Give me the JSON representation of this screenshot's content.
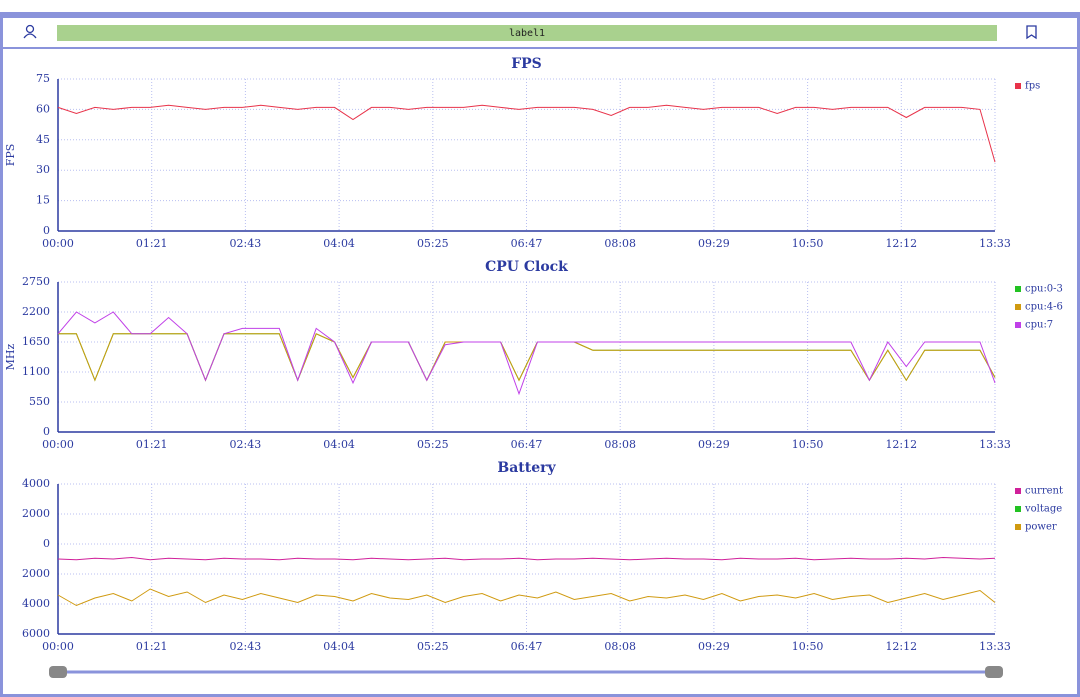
{
  "toolbar": {
    "label": "label1"
  },
  "chart_data": [
    {
      "type": "line",
      "title": "FPS",
      "y_label": "FPS",
      "x": [
        0,
        16,
        32,
        48,
        64,
        80,
        96,
        112,
        128,
        144,
        160,
        176,
        192,
        208,
        224,
        240,
        256,
        272,
        288,
        304,
        320,
        336,
        352,
        368,
        384,
        400,
        416,
        432,
        448,
        464,
        480,
        496,
        512,
        528,
        544,
        560,
        576,
        592,
        608,
        624,
        640,
        656,
        672,
        688,
        704,
        720,
        736,
        752,
        768,
        784,
        800,
        813
      ],
      "xlim": [
        0,
        813
      ],
      "xticks": [
        {
          "value": 0,
          "label": "00:00"
        },
        {
          "value": 81.3,
          "label": "01:21"
        },
        {
          "value": 162.6,
          "label": "02:43"
        },
        {
          "value": 243.9,
          "label": "04:04"
        },
        {
          "value": 325.2,
          "label": "05:25"
        },
        {
          "value": 406.5,
          "label": "06:47"
        },
        {
          "value": 487.8,
          "label": "08:08"
        },
        {
          "value": 569.1,
          "label": "09:29"
        },
        {
          "value": 650.4,
          "label": "10:50"
        },
        {
          "value": 731.7,
          "label": "12:12"
        },
        {
          "value": 813,
          "label": "13:33"
        }
      ],
      "ylim": [
        0,
        75
      ],
      "yticks": [
        0,
        15,
        30,
        45,
        60,
        75
      ],
      "grid": true,
      "legend": "right",
      "series": [
        {
          "name": "fps",
          "color": "#e8334a",
          "values": [
            61,
            58,
            61,
            60,
            61,
            61,
            62,
            61,
            60,
            61,
            61,
            62,
            61,
            60,
            61,
            61,
            55,
            61,
            61,
            60,
            61,
            61,
            61,
            62,
            61,
            60,
            61,
            61,
            61,
            60,
            57,
            61,
            61,
            62,
            61,
            60,
            61,
            61,
            61,
            58,
            61,
            61,
            60,
            61,
            61,
            61,
            56,
            61,
            61,
            61,
            60,
            34
          ]
        }
      ]
    },
    {
      "type": "line",
      "title": "CPU Clock",
      "y_label": "MHz",
      "x": [
        0,
        16,
        32,
        48,
        64,
        80,
        96,
        112,
        128,
        144,
        160,
        176,
        192,
        208,
        224,
        240,
        256,
        272,
        288,
        304,
        320,
        336,
        352,
        368,
        384,
        400,
        416,
        432,
        448,
        464,
        480,
        496,
        512,
        528,
        544,
        560,
        576,
        592,
        608,
        624,
        640,
        656,
        672,
        688,
        704,
        720,
        736,
        752,
        768,
        784,
        800,
        813
      ],
      "xlim": [
        0,
        813
      ],
      "xticks": [
        {
          "value": 0,
          "label": "00:00"
        },
        {
          "value": 81.3,
          "label": "01:21"
        },
        {
          "value": 162.6,
          "label": "02:43"
        },
        {
          "value": 243.9,
          "label": "04:04"
        },
        {
          "value": 325.2,
          "label": "05:25"
        },
        {
          "value": 406.5,
          "label": "06:47"
        },
        {
          "value": 487.8,
          "label": "08:08"
        },
        {
          "value": 569.1,
          "label": "09:29"
        },
        {
          "value": 650.4,
          "label": "10:50"
        },
        {
          "value": 731.7,
          "label": "12:12"
        },
        {
          "value": 813,
          "label": "13:33"
        }
      ],
      "ylim": [
        0,
        2750
      ],
      "yticks": [
        0,
        550,
        1100,
        1650,
        2200,
        2750
      ],
      "grid": true,
      "legend": "right",
      "series": [
        {
          "name": "cpu:0-3",
          "color": "#22c222",
          "values": [
            1800,
            1800,
            950,
            1800,
            1800,
            1800,
            1800,
            1800,
            950,
            1800,
            1800,
            1800,
            1800,
            950,
            1800,
            1650,
            1000,
            1650,
            1650,
            1650,
            950,
            1650,
            1650,
            1650,
            1650,
            950,
            1650,
            1650,
            1650,
            1500,
            1500,
            1500,
            1500,
            1500,
            1500,
            1500,
            1500,
            1500,
            1500,
            1500,
            1500,
            1500,
            1500,
            1500,
            950,
            1500,
            950,
            1500,
            1500,
            1500,
            1500,
            1000
          ]
        },
        {
          "name": "cpu:4-6",
          "color": "#d09a10",
          "values": [
            1800,
            1800,
            950,
            1800,
            1800,
            1800,
            1800,
            1800,
            950,
            1800,
            1800,
            1800,
            1800,
            950,
            1800,
            1650,
            1000,
            1650,
            1650,
            1650,
            950,
            1650,
            1650,
            1650,
            1650,
            950,
            1650,
            1650,
            1650,
            1500,
            1500,
            1500,
            1500,
            1500,
            1500,
            1500,
            1500,
            1500,
            1500,
            1500,
            1500,
            1500,
            1500,
            1500,
            950,
            1500,
            950,
            1500,
            1500,
            1500,
            1500,
            1000
          ]
        },
        {
          "name": "cpu:7",
          "color": "#c040e8",
          "values": [
            1800,
            2200,
            2000,
            2200,
            1800,
            1800,
            2100,
            1800,
            950,
            1800,
            1900,
            1900,
            1900,
            950,
            1900,
            1650,
            900,
            1650,
            1650,
            1650,
            950,
            1600,
            1650,
            1650,
            1650,
            700,
            1650,
            1650,
            1650,
            1650,
            1650,
            1650,
            1650,
            1650,
            1650,
            1650,
            1650,
            1650,
            1650,
            1650,
            1650,
            1650,
            1650,
            1650,
            950,
            1650,
            1200,
            1650,
            1650,
            1650,
            1650,
            900
          ]
        }
      ]
    },
    {
      "type": "line",
      "title": "Battery",
      "x": [
        0,
        16,
        32,
        48,
        64,
        80,
        96,
        112,
        128,
        144,
        160,
        176,
        192,
        208,
        224,
        240,
        256,
        272,
        288,
        304,
        320,
        336,
        352,
        368,
        384,
        400,
        416,
        432,
        448,
        464,
        480,
        496,
        512,
        528,
        544,
        560,
        576,
        592,
        608,
        624,
        640,
        656,
        672,
        688,
        704,
        720,
        736,
        752,
        768,
        784,
        800,
        813
      ],
      "xlim": [
        0,
        813
      ],
      "xticks": [
        {
          "value": 0,
          "label": "00:00"
        },
        {
          "value": 81.3,
          "label": "01:21"
        },
        {
          "value": 162.6,
          "label": "02:43"
        },
        {
          "value": 243.9,
          "label": "04:04"
        },
        {
          "value": 325.2,
          "label": "05:25"
        },
        {
          "value": 406.5,
          "label": "06:47"
        },
        {
          "value": 487.8,
          "label": "08:08"
        },
        {
          "value": 569.1,
          "label": "09:29"
        },
        {
          "value": 650.4,
          "label": "10:50"
        },
        {
          "value": 731.7,
          "label": "12:12"
        },
        {
          "value": 813,
          "label": "13:33"
        }
      ],
      "ylim": [
        -6000,
        4000
      ],
      "yticks": [
        {
          "value": -6000,
          "label": "6000"
        },
        {
          "value": -4000,
          "label": "4000"
        },
        {
          "value": -2000,
          "label": "2000"
        },
        0,
        2000,
        4000
      ],
      "grid": true,
      "legend": "right",
      "series": [
        {
          "name": "current",
          "color": "#d0209a",
          "values": [
            -1000,
            -1050,
            -950,
            -1000,
            -900,
            -1050,
            -950,
            -1000,
            -1050,
            -950,
            -1000,
            -1000,
            -1050,
            -950,
            -1000,
            -1000,
            -1050,
            -950,
            -1000,
            -1050,
            -1000,
            -950,
            -1050,
            -1000,
            -1000,
            -950,
            -1050,
            -1000,
            -1000,
            -950,
            -1000,
            -1050,
            -1000,
            -950,
            -1000,
            -1000,
            -1050,
            -950,
            -1000,
            -1000,
            -950,
            -1050,
            -1000,
            -950,
            -1000,
            -1000,
            -950,
            -1000,
            -900,
            -950,
            -1000,
            -950
          ]
        },
        {
          "name": "voltage",
          "color": "#22c222",
          "values": [
            null,
            null,
            null,
            null,
            null,
            null,
            null,
            null,
            null,
            null,
            null,
            null,
            null,
            null,
            null,
            null,
            null,
            null,
            null,
            null,
            null,
            null,
            null,
            null,
            null,
            null,
            null,
            null,
            null,
            null,
            null,
            null,
            null,
            null,
            null,
            null,
            null,
            null,
            null,
            null,
            null,
            null,
            null,
            null,
            null,
            null,
            null,
            null,
            null,
            null,
            null,
            null
          ]
        },
        {
          "name": "power",
          "color": "#d09a10",
          "values": [
            -3400,
            -4100,
            -3600,
            -3300,
            -3800,
            -3000,
            -3500,
            -3200,
            -3900,
            -3400,
            -3700,
            -3300,
            -3600,
            -3900,
            -3400,
            -3500,
            -3800,
            -3300,
            -3600,
            -3700,
            -3400,
            -3900,
            -3500,
            -3300,
            -3800,
            -3400,
            -3600,
            -3200,
            -3700,
            -3500,
            -3300,
            -3800,
            -3500,
            -3600,
            -3400,
            -3700,
            -3300,
            -3800,
            -3500,
            -3400,
            -3600,
            -3300,
            -3700,
            -3500,
            -3400,
            -3900,
            -3600,
            -3300,
            -3700,
            -3400,
            -3100,
            -3900
          ]
        }
      ]
    }
  ]
}
